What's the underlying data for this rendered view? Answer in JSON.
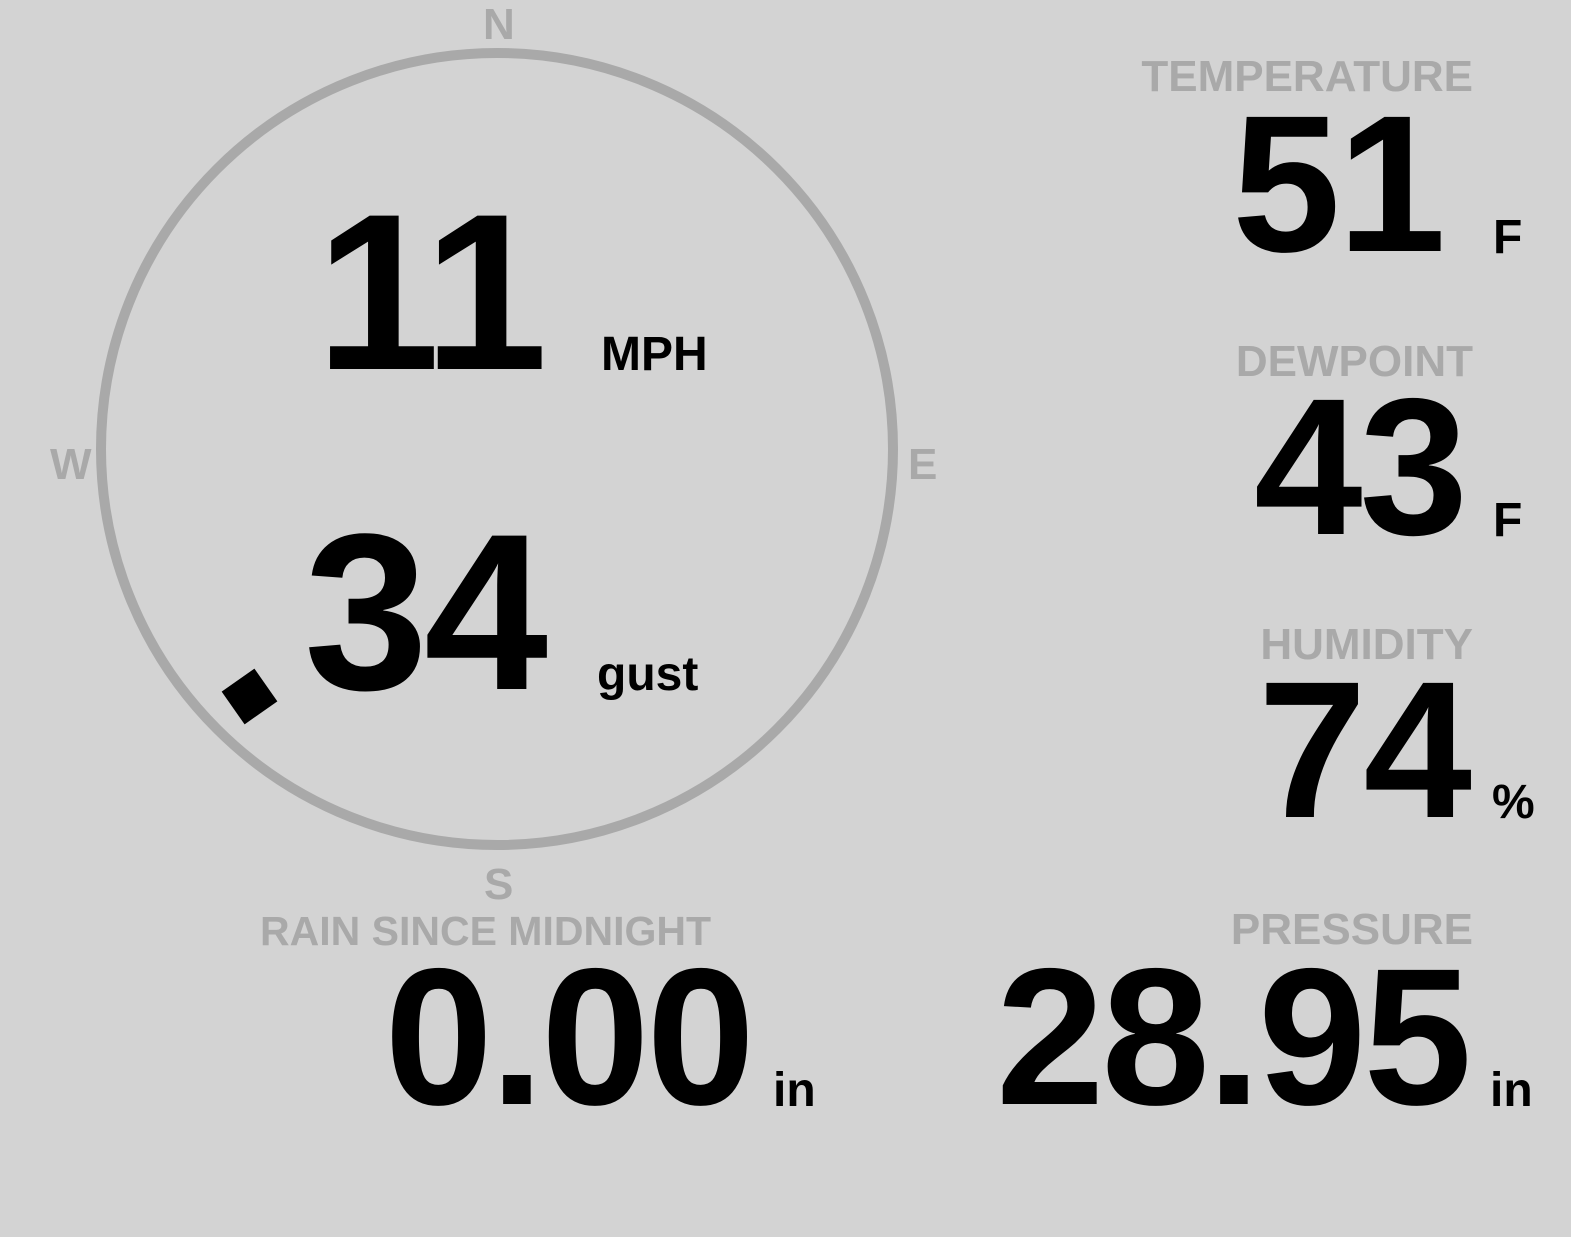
{
  "wind": {
    "speed": "11",
    "speed_unit": "MPH",
    "gust": "34",
    "gust_unit": "gust",
    "direction_degrees": 225,
    "cardinals": {
      "n": "N",
      "e": "E",
      "s": "S",
      "w": "W"
    }
  },
  "rain": {
    "label": "RAIN SINCE MIDNIGHT",
    "value": "0.00",
    "unit": "in"
  },
  "temperature": {
    "label": "TEMPERATURE",
    "value": "51",
    "unit": "F"
  },
  "dewpoint": {
    "label": "DEWPOINT",
    "value": "43",
    "unit": "F"
  },
  "humidity": {
    "label": "HUMIDITY",
    "value": "74",
    "unit": "%"
  },
  "pressure": {
    "label": "PRESSURE",
    "value": "28.95",
    "unit": "in"
  },
  "colors": {
    "background": "#d3d3d3",
    "label": "#a9a9a9",
    "value": "#000000"
  }
}
